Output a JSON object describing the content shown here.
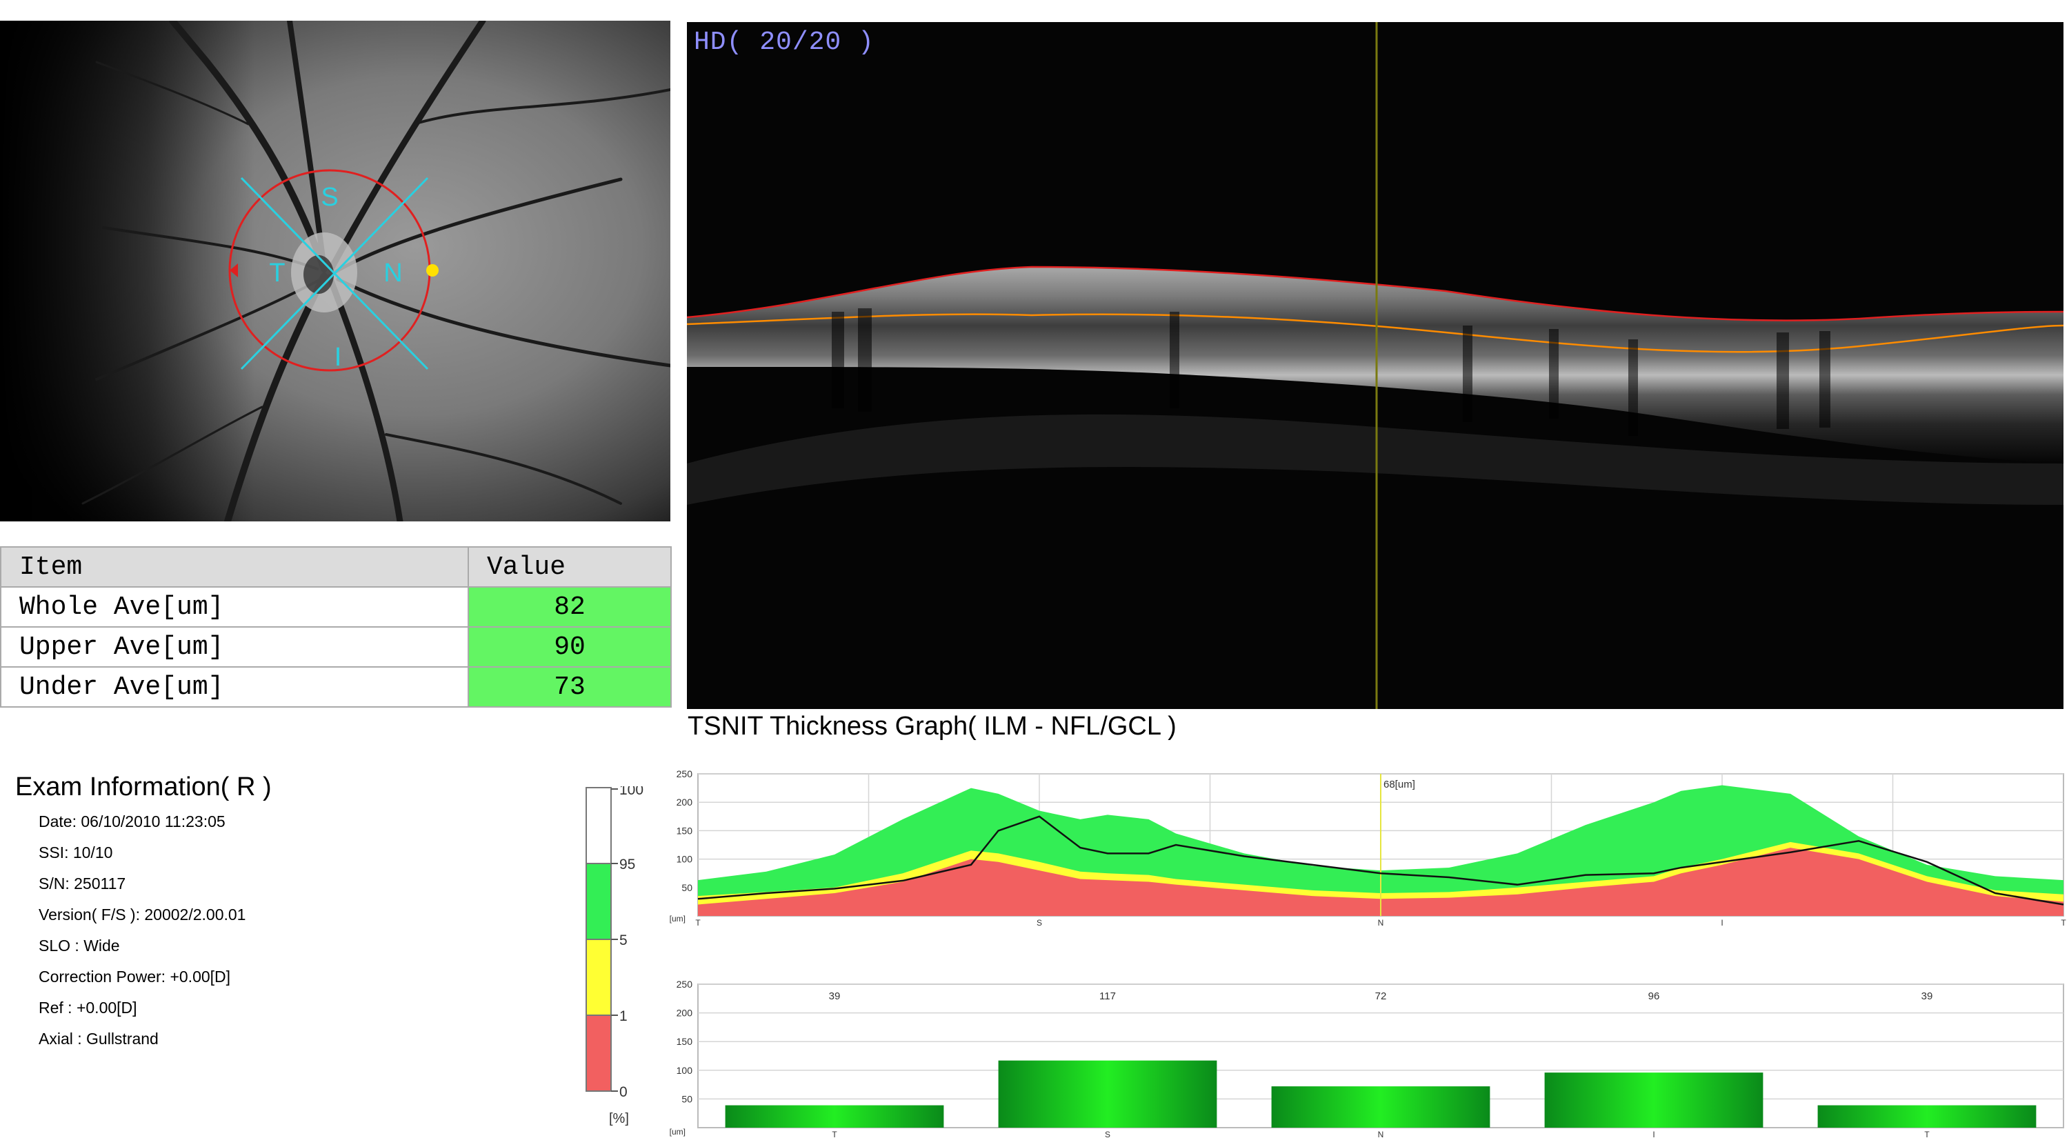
{
  "fundus": {
    "sector_labels": {
      "s": "S",
      "t": "T",
      "n": "N",
      "i": "I"
    }
  },
  "value_table": {
    "header": {
      "item": "Item",
      "value": "Value"
    },
    "rows": [
      {
        "item": "Whole Ave[um]",
        "value": "82"
      },
      {
        "item": "Upper Ave[um]",
        "value": "90"
      },
      {
        "item": "Under Ave[um]",
        "value": "73"
      }
    ],
    "value_color": "#63f563"
  },
  "bscan": {
    "quality_label": "HD( 20/20 )",
    "label_color": "#8f8fff"
  },
  "tsnit": {
    "title": "TSNIT Thickness Graph( ILM - NFL/GCL )"
  },
  "exam": {
    "title": "Exam Information( R )",
    "lines": [
      "Date: 06/10/2010 11:23:05",
      "SSI: 10/10",
      "S/N: 250117",
      "Version( F/S ): 20002/2.00.01",
      "SLO : Wide",
      "Correction Power: +0.00[D]",
      "Ref : +0.00[D]",
      "Axial : Gullstrand"
    ]
  },
  "legend": {
    "ticks": [
      "100",
      "95",
      "5",
      "1",
      "0"
    ],
    "unit": "[%]",
    "colors": {
      "normal": "#33ee55",
      "borderline": "#ffff33",
      "outside": "#f26060",
      "top": "#ffffff"
    }
  },
  "chart_data": [
    {
      "type": "line",
      "title": "TSNIT Thickness Graph( ILM - NFL/GCL )",
      "unit_label": "[um]",
      "ylim": [
        0,
        250
      ],
      "yticks": [
        50,
        100,
        150,
        200,
        250
      ],
      "x_ticks": [
        "T",
        "S",
        "N",
        "I",
        "T"
      ],
      "cursor_label": "68[um]",
      "x": [
        0,
        5,
        10,
        15,
        20,
        22,
        25,
        28,
        30,
        33,
        35,
        40,
        45,
        50,
        55,
        60,
        65,
        70,
        72,
        75,
        80,
        85,
        90,
        95,
        100
      ],
      "series": [
        {
          "values": [
            30,
            40,
            48,
            62,
            90,
            150,
            175,
            120,
            110,
            110,
            125,
            105,
            90,
            75,
            68,
            55,
            72,
            75,
            85,
            95,
            112,
            132,
            95,
            40,
            20
          ]
        },
        {
          "values": [
            63,
            78,
            108,
            170,
            225,
            215,
            185,
            170,
            178,
            170,
            145,
            110,
            88,
            80,
            85,
            110,
            160,
            200,
            220,
            230,
            215,
            140,
            90,
            70,
            63
          ]
        },
        {
          "values": [
            35,
            42,
            50,
            75,
            115,
            110,
            95,
            78,
            75,
            72,
            65,
            55,
            45,
            40,
            42,
            50,
            60,
            70,
            85,
            100,
            130,
            110,
            70,
            45,
            38
          ]
        },
        {
          "values": [
            20,
            30,
            40,
            60,
            100,
            95,
            80,
            65,
            63,
            60,
            55,
            45,
            35,
            30,
            32,
            38,
            50,
            60,
            75,
            90,
            120,
            100,
            60,
            35,
            25
          ]
        }
      ]
    },
    {
      "type": "bar",
      "unit_label": "[um]",
      "ylim": [
        0,
        250
      ],
      "yticks": [
        50,
        100,
        150,
        200,
        250
      ],
      "categories": [
        "T",
        "S",
        "N",
        "I",
        "T"
      ],
      "values": [
        39,
        117,
        72,
        96,
        39
      ]
    }
  ]
}
